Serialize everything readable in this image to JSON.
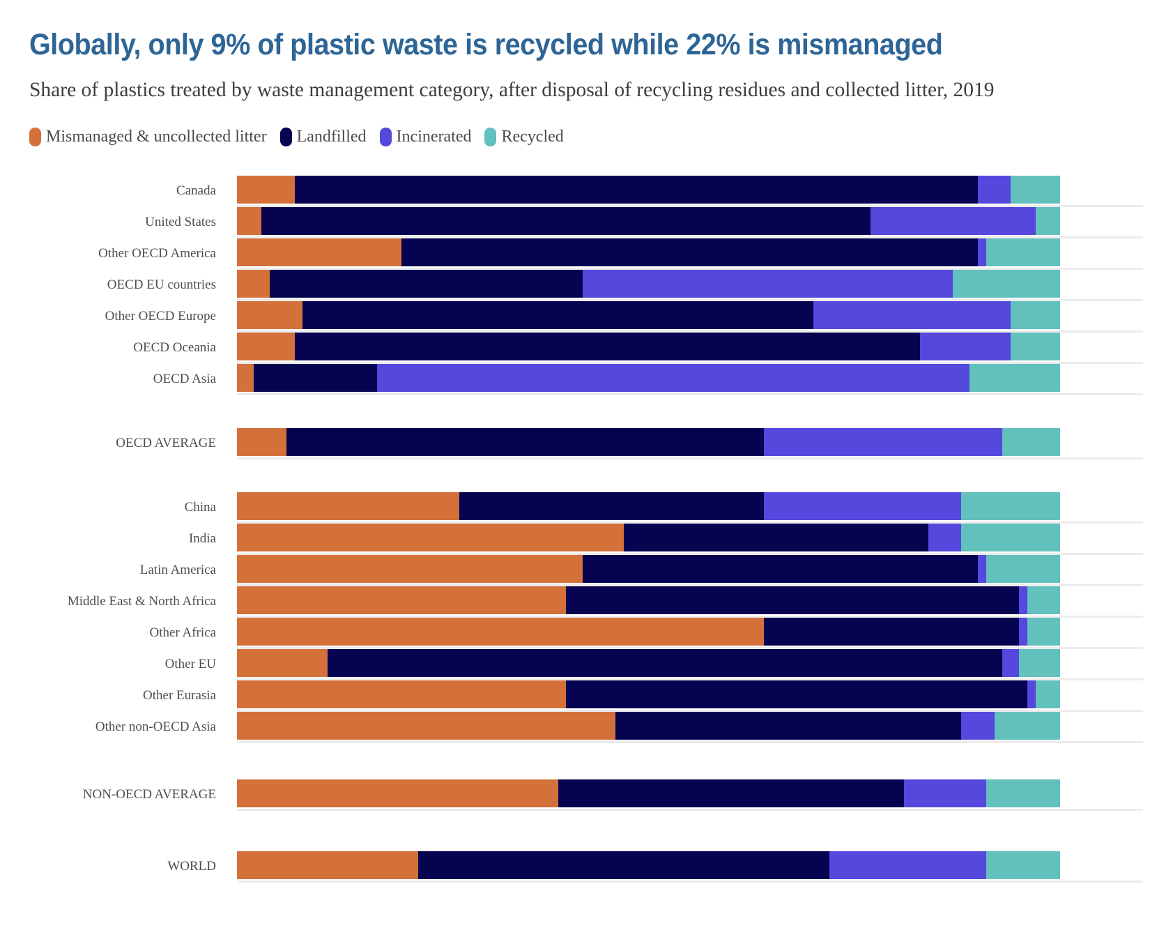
{
  "header": {
    "title": "Globally, only 9% of plastic waste is recycled while 22% is mismanaged",
    "subtitle": "Share of plastics treated by waste management category, after disposal of recycling residues and collected litter, 2019"
  },
  "legend": {
    "items": [
      {
        "label": "Mismanaged & uncollected litter",
        "color": "#D4713B"
      },
      {
        "label": "Landfilled",
        "color": "#060350"
      },
      {
        "label": "Incinerated",
        "color": "#5448DD"
      },
      {
        "label": "Recycled",
        "color": "#62C1BD"
      }
    ]
  },
  "chart_data": {
    "type": "bar",
    "orientation": "horizontal",
    "stacked": true,
    "unit": "percent",
    "xlim": [
      0,
      100
    ],
    "grid": false,
    "legend_position": "top",
    "title": "Globally, only 9% of plastic waste is recycled while 22% is mismanaged",
    "subtitle": "Share of plastics treated by waste management category, after disposal of recycling residues and collected litter, 2019",
    "categories": [
      "Canada",
      "United States",
      "Other OECD America",
      "OECD EU countries",
      "Other OECD Europe",
      "OECD Oceania",
      "OECD Asia",
      "OECD AVERAGE",
      "China",
      "India",
      "Latin America",
      "Middle East & North Africa",
      "Other Africa",
      "Other EU",
      "Other Eurasia",
      "Other non-OECD Asia",
      "NON-OECD AVERAGE",
      "WORLD"
    ],
    "series": [
      {
        "name": "Mismanaged & uncollected litter",
        "color": "#D4713B",
        "values": [
          7,
          3,
          20,
          4,
          8,
          7,
          2,
          6,
          27,
          47,
          42,
          40,
          64,
          11,
          40,
          46,
          39,
          22
        ]
      },
      {
        "name": "Landfilled",
        "color": "#060350",
        "values": [
          83,
          74,
          70,
          38,
          62,
          76,
          15,
          58,
          37,
          37,
          48,
          55,
          31,
          82,
          56,
          42,
          42,
          50
        ]
      },
      {
        "name": "Incinerated",
        "color": "#5448DD",
        "values": [
          4,
          20,
          1,
          45,
          24,
          11,
          72,
          29,
          24,
          4,
          1,
          1,
          1,
          2,
          1,
          4,
          10,
          19
        ]
      },
      {
        "name": "Recycled",
        "color": "#62C1BD",
        "values": [
          6,
          3,
          9,
          13,
          6,
          6,
          11,
          7,
          12,
          12,
          9,
          4,
          4,
          5,
          3,
          8,
          9,
          9
        ]
      }
    ],
    "section_breaks_after": [
      "OECD Asia",
      "OECD AVERAGE",
      "Other non-OECD Asia",
      "NON-OECD AVERAGE"
    ]
  }
}
